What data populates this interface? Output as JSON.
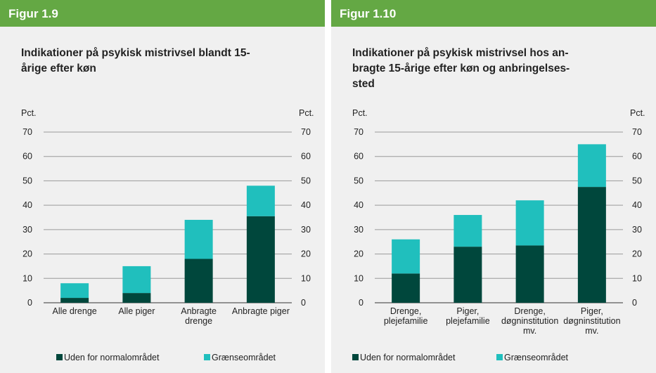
{
  "figures": [
    "Figur 1.9",
    "Figur 1.10"
  ],
  "chart_data": [
    {
      "type": "stacked_bar",
      "title": "Indikationer på psykisk mistrivsel blandt 15-\nårige efter køn",
      "ylabel": "Pct.",
      "y2label": "Pct.",
      "categories": [
        "Alle drenge",
        "Alle piger",
        "Anbragte\ndrenge",
        "Anbragte piger"
      ],
      "series": [
        {
          "name": "Uden for normalområdet",
          "color": "#00473c",
          "values": [
            2,
            4,
            18,
            35.5
          ]
        },
        {
          "name": "Grænseområdet",
          "color": "#20bfbd",
          "values": [
            6,
            11,
            16,
            12.5
          ]
        }
      ],
      "ylim": [
        0,
        70
      ],
      "yticks": [
        0,
        10,
        20,
        30,
        40,
        50,
        60,
        70
      ],
      "y2lim": [
        0,
        70
      ],
      "y2ticks": [
        0,
        10,
        20,
        30,
        40,
        50,
        60,
        70
      ],
      "grid": true
    },
    {
      "type": "stacked_bar",
      "title": "Indikationer på psykisk mistrivsel hos an-\nbragte 15-årige efter køn og anbringelses-\nsted",
      "ylabel": "Pct.",
      "y2label": "Pct.",
      "categories": [
        "Drenge,\nplejefamilie",
        "Piger,\nplejefamilie",
        "Drenge,\ndøgninstitution\nmv.",
        "Piger,\ndøgninstitution\nmv."
      ],
      "series": [
        {
          "name": "Uden for normalområdet",
          "color": "#00473c",
          "values": [
            12,
            23,
            23.5,
            47.5
          ]
        },
        {
          "name": "Grænseområdet",
          "color": "#20bfbd",
          "values": [
            14,
            13,
            18.5,
            17.5
          ]
        }
      ],
      "ylim": [
        0,
        70
      ],
      "yticks": [
        0,
        10,
        20,
        30,
        40,
        50,
        60,
        70
      ],
      "y2lim": [
        0,
        70
      ],
      "y2ticks": [
        0,
        10,
        20,
        30,
        40,
        50,
        60,
        70
      ],
      "grid": true
    }
  ]
}
